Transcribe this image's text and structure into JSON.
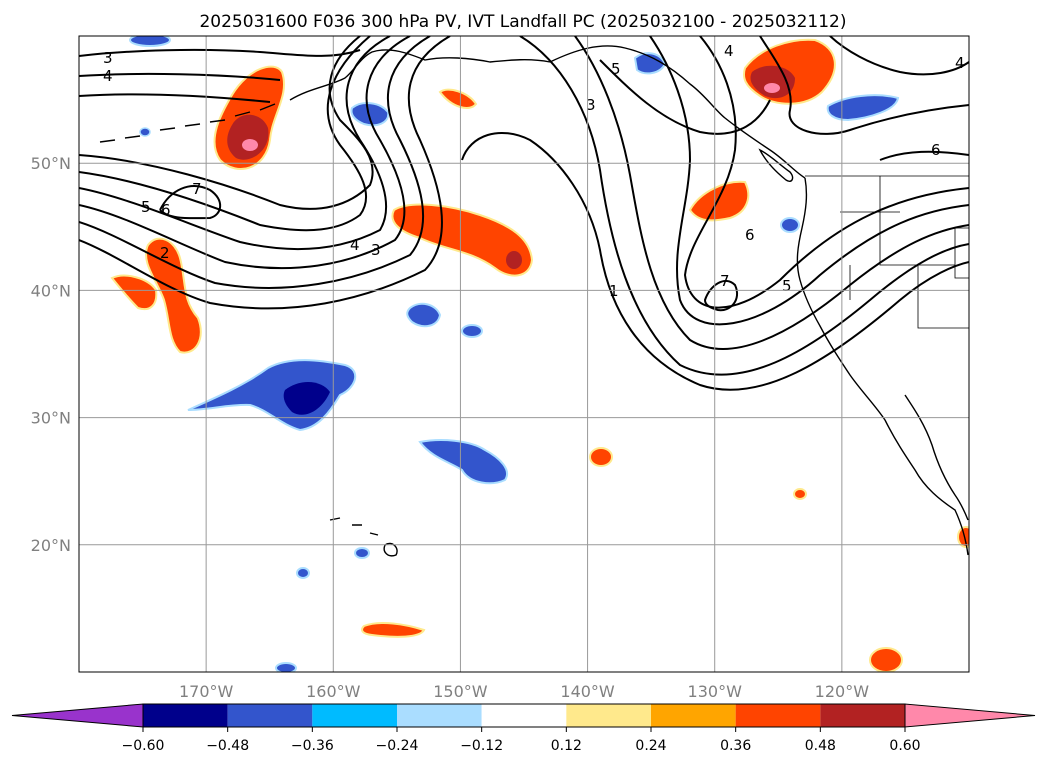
{
  "title": "2025031600 F036 300 hPa PV, IVT Landfall PC (2025032100 - 2025032112)",
  "map": {
    "lon_range": [
      -180,
      -110
    ],
    "lat_range": [
      10,
      60
    ],
    "lon_ticks": [
      {
        "value": -170,
        "label": "170°W"
      },
      {
        "value": -160,
        "label": "160°W"
      },
      {
        "value": -150,
        "label": "150°W"
      },
      {
        "value": -140,
        "label": "140°W"
      },
      {
        "value": -130,
        "label": "130°W"
      },
      {
        "value": -120,
        "label": "120°W"
      }
    ],
    "lat_ticks": [
      {
        "value": 50,
        "label": "50°N"
      },
      {
        "value": 40,
        "label": "40°N"
      },
      {
        "value": 30,
        "label": "30°N"
      },
      {
        "value": 20,
        "label": "20°N"
      }
    ],
    "grid": true,
    "contour_labels": [
      "3",
      "4",
      "5",
      "6",
      "7",
      "2",
      "4",
      "3",
      "5",
      "3",
      "1",
      "6",
      "7",
      "5",
      "4",
      "6",
      "4"
    ]
  },
  "colorbar": {
    "orientation": "horizontal",
    "extend": "both",
    "levels": [
      -0.72,
      -0.6,
      -0.48,
      -0.36,
      -0.24,
      -0.12,
      0.12,
      0.24,
      0.36,
      0.48,
      0.6,
      0.72
    ],
    "tick_labels": [
      "−0.60",
      "−0.48",
      "−0.36",
      "−0.24",
      "−0.12",
      "0.12",
      "0.24",
      "0.36",
      "0.48",
      "0.60"
    ],
    "colors": [
      "#9933cc",
      "#00008b",
      "#3355cc",
      "#00bbff",
      "#aaddff",
      "#ffffff",
      "#ffe98c",
      "#ffa500",
      "#ff4400",
      "#b22222",
      "#ff88aa"
    ]
  }
}
